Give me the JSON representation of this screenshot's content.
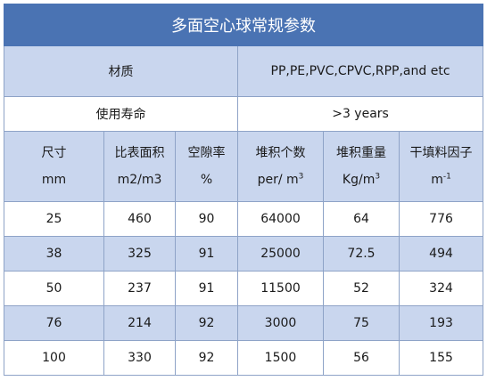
{
  "title": "多面空心球常规参数",
  "material": {
    "label": "材质",
    "value": "PP,PE,PVC,CPVC,RPP,and etc"
  },
  "service_life": {
    "label": "使用寿命",
    "value": ">3 years"
  },
  "columns": [
    {
      "name": "尺寸",
      "unit": "mm",
      "unit_sup": ""
    },
    {
      "name": "比表面积",
      "unit": "m2/m3",
      "unit_sup": ""
    },
    {
      "name": "空隙率",
      "unit": "%",
      "unit_sup": ""
    },
    {
      "name": "堆积个数",
      "unit": "per/ m",
      "unit_sup": "3"
    },
    {
      "name": "堆积重量",
      "unit": "Kg/m",
      "unit_sup": "3"
    },
    {
      "name": "干填料因子",
      "unit": "m",
      "unit_sup": "-1"
    }
  ],
  "rows": [
    [
      "25",
      "460",
      "90",
      "64000",
      "64",
      "776"
    ],
    [
      "38",
      "325",
      "91",
      "25000",
      "72.5",
      "494"
    ],
    [
      "50",
      "237",
      "91",
      "11500",
      "52",
      "324"
    ],
    [
      "76",
      "214",
      "92",
      "3000",
      "75",
      "193"
    ],
    [
      "100",
      "330",
      "92",
      "1500",
      "56",
      "155"
    ]
  ]
}
